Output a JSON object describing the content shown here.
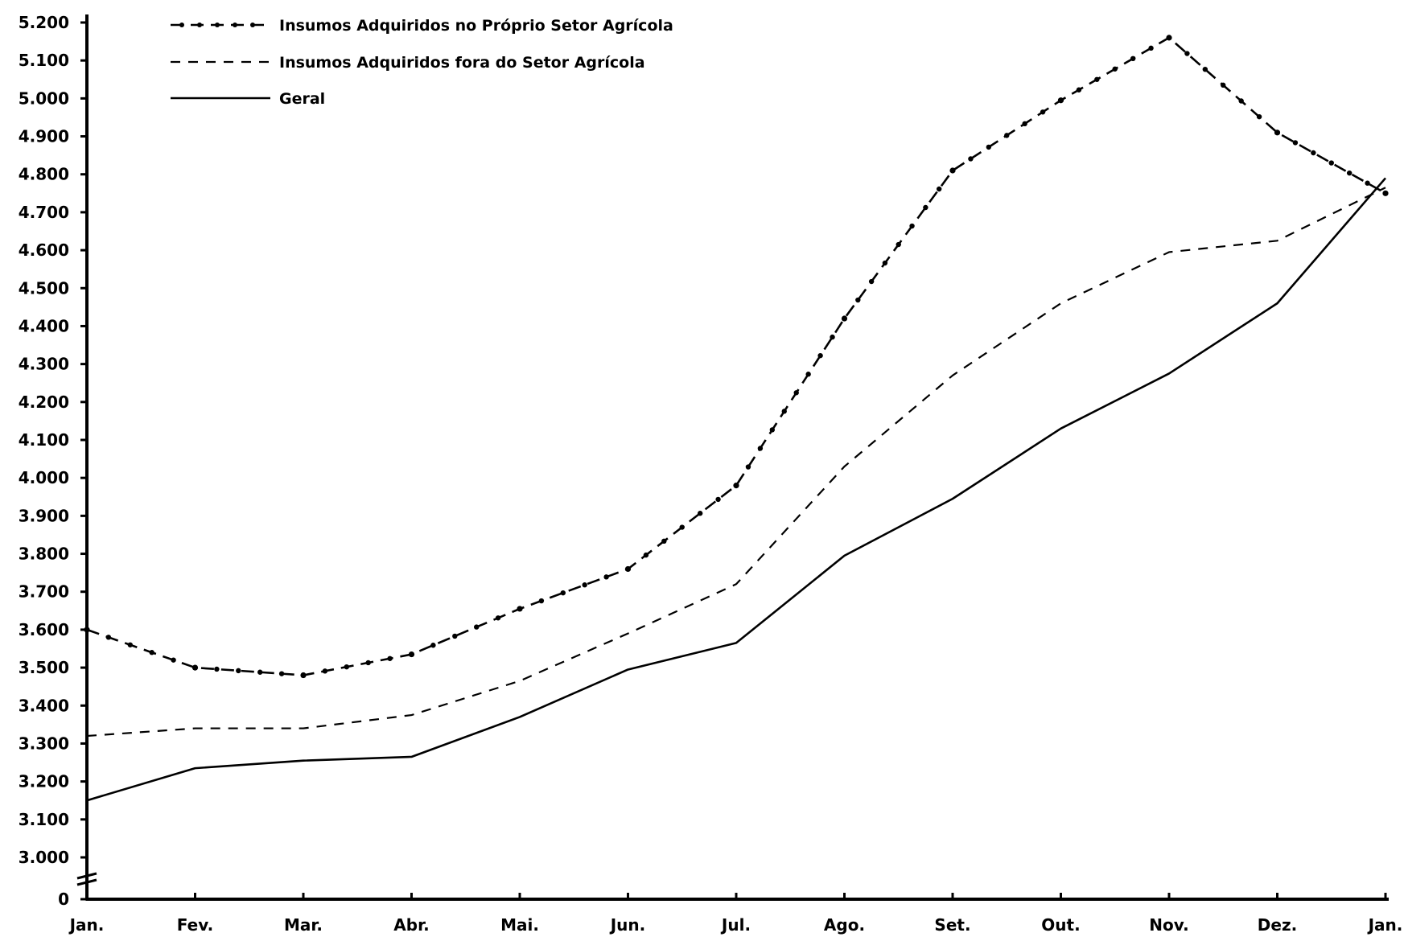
{
  "chart_data": {
    "type": "line",
    "title": "",
    "xlabel": "",
    "ylabel": "",
    "categories": [
      "Jan.",
      "Fev.",
      "Mar.",
      "Abr.",
      "Mai.",
      "Jun.",
      "Jul.",
      "Ago.",
      "Set.",
      "Out.",
      "Nov.",
      "Dez.",
      "Jan."
    ],
    "y_ticks": [
      {
        "value": 0,
        "label": "0"
      },
      {
        "value": 3000,
        "label": "3.000"
      },
      {
        "value": 3100,
        "label": "3.100"
      },
      {
        "value": 3200,
        "label": "3.200"
      },
      {
        "value": 3300,
        "label": "3.300"
      },
      {
        "value": 3400,
        "label": "3.400"
      },
      {
        "value": 3500,
        "label": "3.500"
      },
      {
        "value": 3600,
        "label": "3.600"
      },
      {
        "value": 3700,
        "label": "3.700"
      },
      {
        "value": 3800,
        "label": "3.800"
      },
      {
        "value": 3900,
        "label": "3.900"
      },
      {
        "value": 4000,
        "label": "4.000"
      },
      {
        "value": 4100,
        "label": "4.100"
      },
      {
        "value": 4200,
        "label": "4.200"
      },
      {
        "value": 4300,
        "label": "4.300"
      },
      {
        "value": 4400,
        "label": "4.400"
      },
      {
        "value": 4500,
        "label": "4.500"
      },
      {
        "value": 4600,
        "label": "4.600"
      },
      {
        "value": 4700,
        "label": "4.700"
      },
      {
        "value": 4800,
        "label": "4.800"
      },
      {
        "value": 4900,
        "label": "4.900"
      },
      {
        "value": 5000,
        "label": "5.000"
      },
      {
        "value": 5100,
        "label": "5.100"
      },
      {
        "value": 5200,
        "label": "5.200"
      }
    ],
    "ylim": [
      3000,
      5200
    ],
    "axis_break": true,
    "grid": false,
    "legend_position": "top-left",
    "series": [
      {
        "name": "Insumos Adquiridos no Próprio Setor Agrícola",
        "style": "dash-dot-markers",
        "values": [
          3600,
          3500,
          3480,
          3535,
          3655,
          3760,
          3980,
          4420,
          4810,
          4995,
          5160,
          4910,
          4750
        ]
      },
      {
        "name": "Insumos Adquiridos fora do Setor Agrícola",
        "style": "dashed",
        "values": [
          3320,
          3340,
          3340,
          3375,
          3465,
          3590,
          3720,
          4030,
          4270,
          4460,
          4595,
          4625,
          4765
        ]
      },
      {
        "name": "Geral",
        "style": "solid",
        "values": [
          3150,
          3235,
          3255,
          3265,
          3370,
          3495,
          3565,
          3795,
          3945,
          4130,
          4275,
          4460,
          4790
        ]
      }
    ],
    "line_color": "#000000"
  }
}
